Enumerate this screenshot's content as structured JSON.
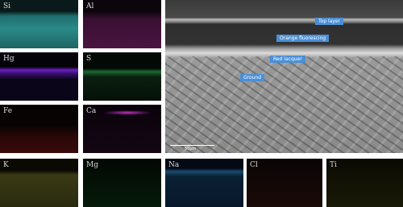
{
  "element_maps": [
    {
      "label": "Si"
    },
    {
      "label": "Al"
    },
    {
      "label": "Hg"
    },
    {
      "label": "S"
    },
    {
      "label": "Fe"
    },
    {
      "label": "Ca"
    },
    {
      "label": "K"
    },
    {
      "label": "Mg"
    },
    {
      "label": "Na"
    },
    {
      "label": "Cl"
    },
    {
      "label": "Ti"
    }
  ],
  "sem_image": {
    "annotations": [
      "Top layer",
      "Orange fluorescing",
      "Red lacquer",
      "Ground"
    ],
    "scale_bar": "50μm"
  }
}
